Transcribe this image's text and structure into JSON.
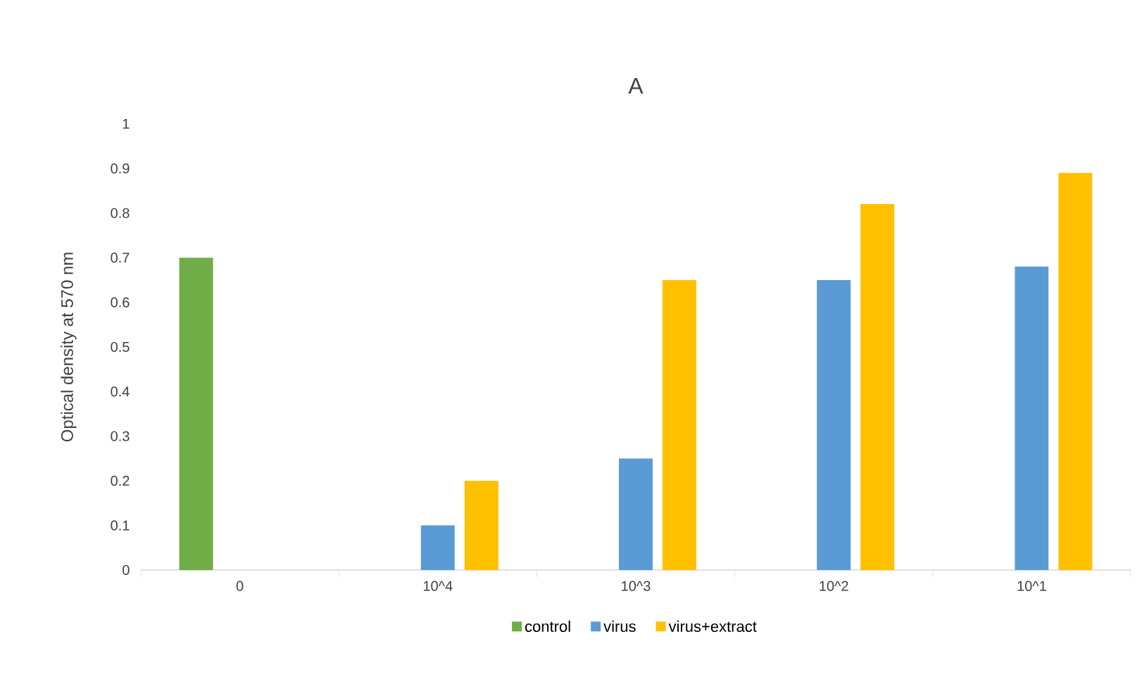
{
  "chart_data": {
    "type": "bar",
    "title": "A",
    "ylabel": "Optical density at 570 nm",
    "categories": [
      "0",
      "10^4",
      "10^3",
      "10^2",
      "10^1"
    ],
    "series": [
      {
        "name": "control",
        "color": "#70ad47",
        "values": [
          0.7,
          null,
          null,
          null,
          null
        ]
      },
      {
        "name": "virus",
        "color": "#5b9bd5",
        "values": [
          null,
          0.1,
          0.25,
          0.65,
          0.68
        ]
      },
      {
        "name": "virus+extract",
        "color": "#ffc000",
        "values": [
          null,
          0.2,
          0.65,
          0.82,
          0.89
        ]
      }
    ],
    "ylim": [
      0,
      1
    ],
    "yticks": [
      0,
      0.1,
      0.2,
      0.3,
      0.4,
      0.5,
      0.6,
      0.7,
      0.8,
      0.9,
      1
    ],
    "legend": "bottom"
  }
}
